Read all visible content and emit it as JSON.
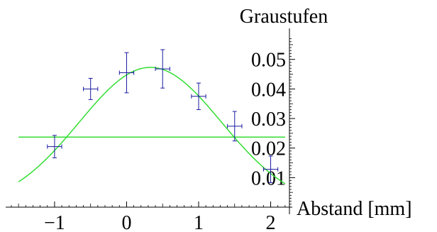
{
  "chart_data": {
    "type": "scatter",
    "title": "",
    "xlabel": "Abstand [mm]",
    "ylabel": "Graustufen",
    "xlim": [
      -1.6,
      2.3
    ],
    "ylim": [
      0.0,
      0.057
    ],
    "x_ticks": [
      -1,
      0,
      1,
      2
    ],
    "x_tick_labels": [
      "−1",
      "0",
      "1",
      "2"
    ],
    "y_ticks": [
      0.01,
      0.02,
      0.03,
      0.04,
      0.05
    ],
    "y_tick_labels": [
      "0.01",
      "0.02",
      "0.03",
      "0.04",
      "0.05"
    ],
    "grid": false,
    "series": [
      {
        "kind": "points-with-errorbars",
        "color": "#1a1aa0",
        "points": [
          {
            "x": -1.0,
            "y": 0.0205,
            "xerr": 0.1,
            "yerr": 0.0038
          },
          {
            "x": -0.5,
            "y": 0.04,
            "xerr": 0.1,
            "yerr": 0.0036
          },
          {
            "x": 0.0,
            "y": 0.0455,
            "xerr": 0.1,
            "yerr": 0.0068
          },
          {
            "x": 0.5,
            "y": 0.0468,
            "xerr": 0.1,
            "yerr": 0.0065
          },
          {
            "x": 1.0,
            "y": 0.0375,
            "xerr": 0.1,
            "yerr": 0.0045
          },
          {
            "x": 1.5,
            "y": 0.0274,
            "xerr": 0.1,
            "yerr": 0.005
          },
          {
            "x": 2.0,
            "y": 0.0128,
            "xerr": 0.1,
            "yerr": 0.0045
          }
        ]
      },
      {
        "kind": "curve",
        "color": "#33dd33",
        "model": "gaussian",
        "amplitude": 0.0473,
        "center": 0.33,
        "sigma": 0.99,
        "x_range": [
          -1.5,
          2.2
        ]
      },
      {
        "kind": "hline",
        "color": "#33dd33",
        "y": 0.0237,
        "x_range": [
          -1.5,
          2.2
        ]
      }
    ]
  }
}
